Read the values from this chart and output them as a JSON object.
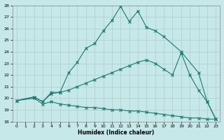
{
  "xlabel": "Humidex (Indice chaleur)",
  "xlim": [
    -0.5,
    23.5
  ],
  "ylim": [
    18,
    28
  ],
  "xticks": [
    0,
    1,
    2,
    3,
    4,
    5,
    6,
    7,
    8,
    9,
    10,
    11,
    12,
    13,
    14,
    15,
    16,
    17,
    18,
    19,
    20,
    21,
    22,
    23
  ],
  "yticks": [
    18,
    19,
    20,
    21,
    22,
    23,
    24,
    25,
    26,
    27,
    28
  ],
  "bg_color": "#c6e8e8",
  "grid_color": "#b0cccc",
  "line_color": "#1a7a6e",
  "curve1_x": [
    0,
    2,
    3,
    4,
    5,
    6,
    7,
    8,
    9,
    10,
    11,
    12,
    13,
    14,
    15,
    16,
    17,
    19,
    21,
    22,
    23
  ],
  "curve1_y": [
    19.8,
    20.1,
    19.7,
    20.5,
    20.5,
    22.2,
    23.1,
    24.3,
    24.7,
    25.8,
    26.7,
    27.9,
    26.6,
    27.5,
    26.1,
    25.8,
    25.3,
    24.0,
    22.2,
    19.7,
    18.2
  ],
  "curve2_x": [
    0,
    2,
    3,
    4,
    5,
    6,
    7,
    8,
    9,
    10,
    11,
    12,
    13,
    14,
    15,
    16,
    17,
    18,
    19,
    20,
    21,
    22,
    23
  ],
  "curve2_y": [
    19.8,
    20.1,
    19.7,
    20.4,
    20.5,
    20.7,
    21.0,
    21.3,
    21.6,
    21.9,
    22.2,
    22.5,
    22.8,
    23.1,
    23.3,
    23.0,
    22.5,
    22.0,
    23.9,
    22.0,
    20.7,
    19.7,
    18.2
  ],
  "curve3_x": [
    0,
    2,
    3,
    4,
    5,
    6,
    7,
    8,
    9,
    10,
    11,
    12,
    13,
    14,
    15,
    16,
    17,
    18,
    19,
    20,
    21,
    22,
    23
  ],
  "curve3_y": [
    19.8,
    20.0,
    19.5,
    19.7,
    19.5,
    19.4,
    19.3,
    19.2,
    19.2,
    19.1,
    19.0,
    19.0,
    18.9,
    18.9,
    18.8,
    18.7,
    18.6,
    18.5,
    18.4,
    18.3,
    18.3,
    18.2,
    18.2
  ]
}
